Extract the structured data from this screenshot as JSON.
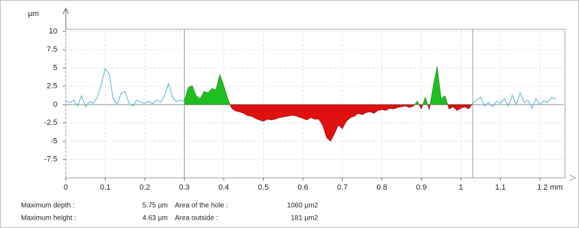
{
  "chart_data": {
    "type": "profile",
    "y_label": "µm",
    "xlim": [
      0,
      1.26
    ],
    "ylim": [
      -10,
      10
    ],
    "xticks": [
      0,
      0.1,
      0.2,
      0.3,
      0.4,
      0.5,
      0.6,
      0.7,
      0.8,
      0.9,
      1,
      1.1,
      {
        "value": 1.2,
        "label": "1.2 mm"
      }
    ],
    "yticks": [
      10,
      7.5,
      5,
      2.5,
      0,
      -2.5,
      -5,
      -7.5
    ],
    "grid": true,
    "series": [
      {
        "color": "#5bb5d5",
        "fill": false,
        "x": [
          0,
          0.01,
          0.02,
          0.03,
          0.04,
          0.05,
          0.06,
          0.07,
          0.08,
          0.09,
          0.1,
          0.11,
          0.12,
          0.13,
          0.14,
          0.15,
          0.16,
          0.17,
          0.18,
          0.19,
          0.2,
          0.21,
          0.22,
          0.23,
          0.24,
          0.25,
          0.26,
          0.27,
          0.28,
          0.29,
          0.3
        ],
        "values": [
          0.5,
          0.3,
          0.6,
          -0.2,
          1.2,
          -0.3,
          0.4,
          0.2,
          1.0,
          2.8,
          4.9,
          4.2,
          0.8,
          0.0,
          1.5,
          1.8,
          0.2,
          -0.2,
          0.6,
          0.3,
          0.2,
          0.5,
          0.1,
          0.6,
          0.3,
          1.2,
          2.9,
          1.0,
          0.4,
          0.6,
          0.5
        ]
      },
      {
        "fill": true,
        "fill_above": "#1fbf1f",
        "fill_below": "#e01010",
        "x": [
          0.3,
          0.31,
          0.32,
          0.33,
          0.34,
          0.35,
          0.36,
          0.37,
          0.38,
          0.39,
          0.4,
          0.41,
          0.42,
          0.43,
          0.44,
          0.45,
          0.46,
          0.47,
          0.48,
          0.49,
          0.5,
          0.51,
          0.52,
          0.53,
          0.54,
          0.55,
          0.56,
          0.57,
          0.58,
          0.59,
          0.6,
          0.61,
          0.62,
          0.63,
          0.64,
          0.65,
          0.66,
          0.67,
          0.68,
          0.69,
          0.7,
          0.71,
          0.72,
          0.73,
          0.74,
          0.75,
          0.76,
          0.77,
          0.78,
          0.79,
          0.8,
          0.81,
          0.82,
          0.83,
          0.84,
          0.85,
          0.86,
          0.87,
          0.88,
          0.89,
          0.9,
          0.91,
          0.92,
          0.93,
          0.94,
          0.95,
          0.96,
          0.97,
          0.98,
          0.99,
          1,
          1.01,
          1.02,
          1.03
        ],
        "values": [
          0.5,
          2.3,
          2.6,
          1.2,
          0.8,
          1.8,
          1.6,
          2.2,
          2.0,
          4.1,
          2.6,
          0.8,
          -0.5,
          -0.9,
          -1.0,
          -1.2,
          -1.5,
          -1.6,
          -1.9,
          -2.1,
          -2.3,
          -2.0,
          -2.1,
          -2.0,
          -1.8,
          -1.7,
          -1.6,
          -1.5,
          -1.5,
          -1.7,
          -1.9,
          -2.1,
          -1.8,
          -2.0,
          -2.0,
          -2.8,
          -4.5,
          -5.0,
          -4.0,
          -2.8,
          -3.3,
          -2.3,
          -1.8,
          -1.6,
          -1.2,
          -1.4,
          -1.1,
          -1.0,
          -1.2,
          -0.8,
          -0.7,
          -0.8,
          -0.5,
          -0.6,
          -0.4,
          -0.3,
          -0.2,
          -0.4,
          -0.2,
          0.5,
          -0.6,
          1.0,
          -0.7,
          2.5,
          5.2,
          0.8,
          1.2,
          -0.6,
          -0.3,
          -0.8,
          -0.5,
          -0.3,
          -0.6,
          0.2
        ]
      },
      {
        "color": "#5bb5d5",
        "fill": false,
        "x": [
          1.03,
          1.04,
          1.05,
          1.06,
          1.07,
          1.08,
          1.09,
          1.1,
          1.11,
          1.12,
          1.13,
          1.14,
          1.15,
          1.16,
          1.17,
          1.18,
          1.19,
          1.2,
          1.21,
          1.22,
          1.23,
          1.24
        ],
        "values": [
          0.2,
          0.6,
          1.0,
          -0.2,
          0.3,
          -0.3,
          0.5,
          0.2,
          0.8,
          -0.2,
          1.3,
          0.0,
          1.6,
          0.3,
          0.6,
          -0.5,
          0.8,
          0.0,
          0.5,
          0.3,
          1.0,
          0.7
        ]
      }
    ]
  },
  "stats": {
    "rows": [
      [
        "Maximum depth :",
        "5.75 µm",
        "Area of the hole :",
        "1060 µm2"
      ],
      [
        "Maximum height :",
        "4.63 µm",
        "Area outside :",
        "181 µm2"
      ]
    ]
  }
}
